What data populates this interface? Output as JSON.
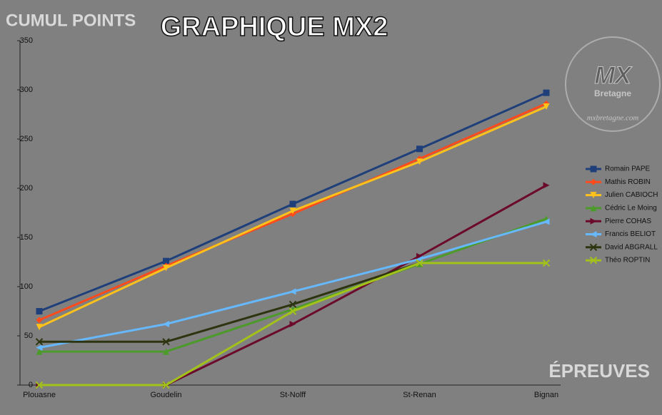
{
  "chart_data": {
    "type": "line",
    "title": "GRAPHIQUE MX2",
    "y_label": "CUMUL POINTS",
    "x_label": "ÉPREUVES",
    "watermark": {
      "logo": "MX",
      "logo_sub": "Bretagne",
      "site": "mxbretagne.com"
    },
    "categories": [
      "Plouasne",
      "Goudelin",
      "St-Nolff",
      "St-Renan",
      "Bignan"
    ],
    "ylim": [
      0,
      350
    ],
    "yticks": [
      0,
      50,
      100,
      150,
      200,
      250,
      300,
      350
    ],
    "grid": false,
    "legend": "right",
    "series": [
      {
        "name": "Romain PAPE",
        "color": "#1f3f7a",
        "marker": "square",
        "values": [
          75,
          126,
          184,
          240,
          297
        ]
      },
      {
        "name": "Mathis ROBIN",
        "color": "#ff4a1c",
        "marker": "diamond",
        "values": [
          66,
          121,
          174,
          230,
          286
        ]
      },
      {
        "name": "Julien CABIOCH",
        "color": "#ffc21a",
        "marker": "triangle-down",
        "values": [
          59,
          119,
          177,
          227,
          283
        ]
      },
      {
        "name": "Cédric Le Moing",
        "color": "#4c9a2a",
        "marker": "triangle-up",
        "values": [
          34,
          34,
          77,
          123,
          169
        ]
      },
      {
        "name": "Pierre COHAS",
        "color": "#6b0a2a",
        "marker": "triangle-right",
        "values": [
          0,
          0,
          62,
          131,
          203
        ]
      },
      {
        "name": "Francis BELIOT",
        "color": "#66b8ff",
        "marker": "triangle-left",
        "values": [
          38,
          62,
          95,
          128,
          166
        ]
      },
      {
        "name": "David ABGRALL",
        "color": "#2c3410",
        "marker": "x",
        "values": [
          44,
          44,
          82,
          124,
          null
        ]
      },
      {
        "name": "Théo ROPTIN",
        "color": "#a2c21a",
        "marker": "x",
        "values": [
          0,
          0,
          75,
          124,
          124
        ]
      }
    ]
  }
}
